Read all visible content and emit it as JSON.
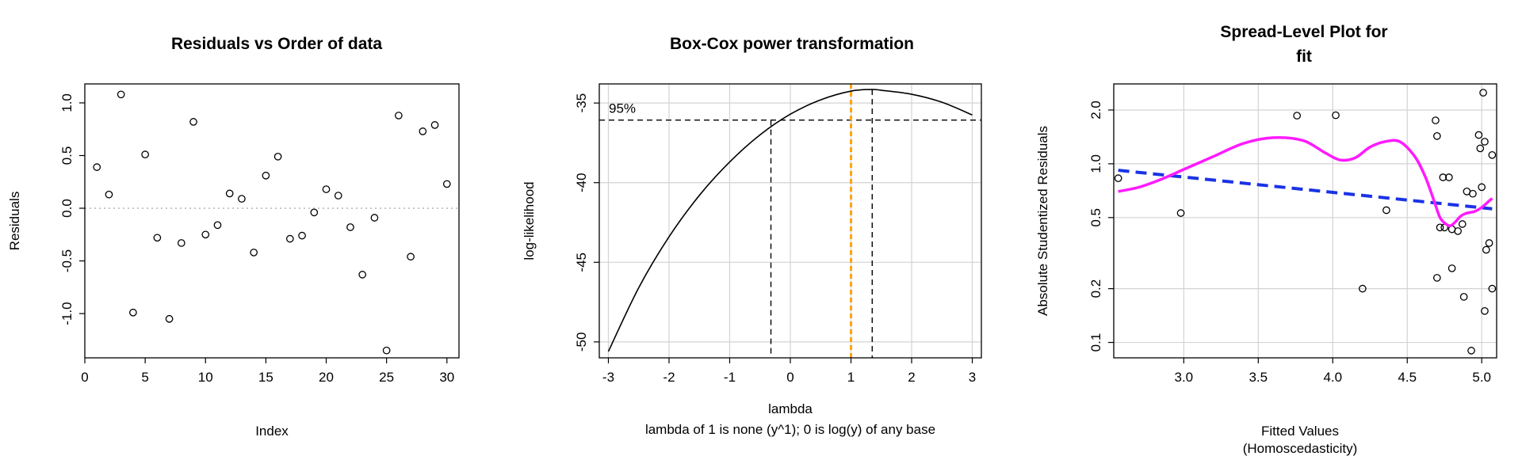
{
  "chart_data": [
    {
      "type": "scatter",
      "title": "Residuals vs Order of data",
      "xlabel": "Index",
      "ylabel": "Residuals",
      "xlim": [
        0,
        31
      ],
      "ylim": [
        -1.42,
        1.18
      ],
      "x_ticks": [
        0,
        5,
        10,
        15,
        20,
        25,
        30
      ],
      "y_ticks": [
        -1.0,
        -0.5,
        0.0,
        0.5,
        1.0
      ],
      "y_tick_labels": [
        "-1.0",
        "-0.5",
        "0.0",
        "0.5",
        "1.0"
      ],
      "reference_line": {
        "y": 0,
        "style": "dotted",
        "color": "#bbbbbb"
      },
      "grid": false,
      "series": [
        {
          "x": [
            1,
            2,
            3,
            4,
            5,
            6,
            7,
            8,
            9,
            10,
            11,
            12,
            13,
            14,
            15,
            16,
            17,
            18,
            19,
            20,
            21,
            22,
            23,
            24,
            25,
            26,
            27,
            28,
            29,
            30
          ],
          "y": [
            0.39,
            0.13,
            1.08,
            -0.99,
            0.51,
            -0.28,
            -1.05,
            -0.33,
            0.82,
            -0.25,
            -0.16,
            0.14,
            0.09,
            -0.42,
            0.31,
            0.49,
            -0.29,
            -0.26,
            -0.04,
            0.18,
            0.12,
            -0.18,
            -0.63,
            -0.09,
            -1.35,
            0.88,
            -0.46,
            0.73,
            0.79,
            0.23
          ]
        }
      ]
    },
    {
      "type": "line",
      "title": "Box-Cox power transformation",
      "xlabel": "lambda",
      "subtitle": "lambda of 1 is none (y^1); 0 is log(y) of any base",
      "ylabel": "log-likelihood",
      "xlim": [
        -3.15,
        3.15
      ],
      "ylim": [
        -51.0,
        -33.8
      ],
      "x_ticks": [
        -3,
        -2,
        -1,
        0,
        1,
        2,
        3
      ],
      "y_ticks": [
        -50,
        -45,
        -40,
        -35
      ],
      "grid": true,
      "series": [
        {
          "x": [
            -3.0,
            -2.5,
            -2.0,
            -1.5,
            -1.0,
            -0.5,
            0.0,
            0.5,
            1.0,
            1.35,
            1.5,
            2.0,
            2.5,
            3.0
          ],
          "y": [
            -50.6,
            -46.6,
            -43.4,
            -40.8,
            -38.7,
            -37.0,
            -35.7,
            -34.8,
            -34.25,
            -34.15,
            -34.2,
            -34.45,
            -34.95,
            -35.75
          ]
        }
      ],
      "ci_label": "95%",
      "ci_level": -36.07,
      "ci_lower": -0.32,
      "lambda_max": 1.35,
      "reference_lambda": 1,
      "reference_color": "#ffa500"
    },
    {
      "type": "scatter",
      "title": "Spread-Level Plot for\nfit",
      "title_lines": [
        "Spread-Level Plot for",
        "fit"
      ],
      "xlabel": "Fitted Values",
      "xlabel_line2": "(Homoscedasticity)",
      "ylabel": "Absolute Studentized Residuals",
      "y_scale": "log",
      "xlim": [
        2.53,
        5.1
      ],
      "ylim": [
        0.082,
        2.8
      ],
      "x_ticks": [
        3.0,
        3.5,
        4.0,
        4.5,
        5.0
      ],
      "x_tick_labels": [
        "3.0",
        "3.5",
        "4.0",
        "4.5",
        "5.0"
      ],
      "y_ticks": [
        0.1,
        0.2,
        0.5,
        1.0,
        2.0
      ],
      "y_tick_labels": [
        "0.1",
        "0.2",
        "0.5",
        "1.0",
        "2.0"
      ],
      "grid": true,
      "series": [
        {
          "name": "points",
          "x": [
            2.56,
            2.98,
            3.76,
            4.02,
            4.2,
            4.36,
            4.69,
            4.7,
            4.7,
            4.72,
            4.74,
            4.75,
            4.78,
            4.8,
            4.8,
            4.84,
            4.87,
            4.88,
            4.9,
            4.93,
            4.94,
            4.98,
            4.99,
            5.0,
            5.01,
            5.02,
            5.02,
            5.03,
            5.05,
            5.07,
            5.07
          ],
          "y": [
            0.83,
            0.53,
            1.86,
            1.87,
            0.2,
            0.55,
            1.75,
            1.43,
            0.23,
            0.44,
            0.84,
            0.44,
            0.84,
            0.26,
            0.43,
            0.42,
            0.46,
            0.18,
            0.7,
            0.09,
            0.68,
            1.45,
            1.22,
            0.74,
            2.5,
            0.15,
            1.33,
            0.33,
            0.36,
            1.12,
            0.2
          ]
        },
        {
          "name": "trend",
          "style": "dashed",
          "color": "#1a33e6",
          "x": [
            2.56,
            5.07
          ],
          "y": [
            0.92,
            0.56
          ]
        },
        {
          "name": "smooth",
          "style": "solid",
          "color": "#ff1aff",
          "x": [
            2.56,
            2.7,
            2.85,
            3.0,
            3.2,
            3.4,
            3.6,
            3.8,
            3.95,
            4.05,
            4.15,
            4.25,
            4.35,
            4.45,
            4.55,
            4.62,
            4.68,
            4.72,
            4.76,
            4.79,
            4.82,
            4.86,
            4.9,
            4.95,
            5.0,
            5.05,
            5.07
          ],
          "y": [
            0.7,
            0.74,
            0.82,
            0.93,
            1.1,
            1.3,
            1.4,
            1.35,
            1.15,
            1.05,
            1.08,
            1.24,
            1.33,
            1.33,
            1.1,
            0.85,
            0.62,
            0.5,
            0.46,
            0.45,
            0.47,
            0.51,
            0.53,
            0.54,
            0.57,
            0.62,
            0.64
          ]
        }
      ]
    }
  ]
}
